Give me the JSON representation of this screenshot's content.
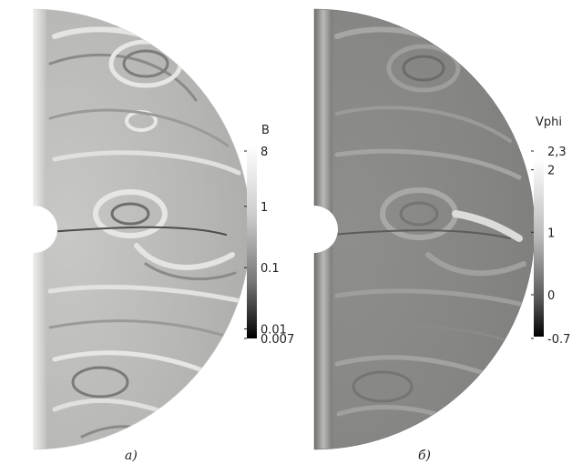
{
  "panels": [
    {
      "id": "a",
      "caption": "а)",
      "colorbar": {
        "title": "B",
        "scale": "log",
        "min": 0.007,
        "max": 8,
        "ticks": [
          {
            "label": "8",
            "value": 8
          },
          {
            "label": "1",
            "value": 1
          },
          {
            "label": "0.1",
            "value": 0.1
          },
          {
            "label": "0.01",
            "value": 0.01
          },
          {
            "label": "0.007",
            "value": 0.007
          }
        ]
      }
    },
    {
      "id": "b",
      "caption": "б)",
      "colorbar": {
        "title": "Vphi",
        "scale": "linear",
        "min": -0.7,
        "max": 2.3,
        "ticks": [
          {
            "label": "2,3",
            "value": 2.3
          },
          {
            "label": "2",
            "value": 2
          },
          {
            "label": "1",
            "value": 1
          },
          {
            "label": "0",
            "value": 0
          },
          {
            "label": "-0.7",
            "value": -0.7
          }
        ]
      }
    }
  ],
  "colors": {
    "background": "#ffffff",
    "field_light": "#d6d6d4",
    "field_mid": "#9a9a98",
    "field_dark": "#4a4a48",
    "text": "#222222"
  }
}
